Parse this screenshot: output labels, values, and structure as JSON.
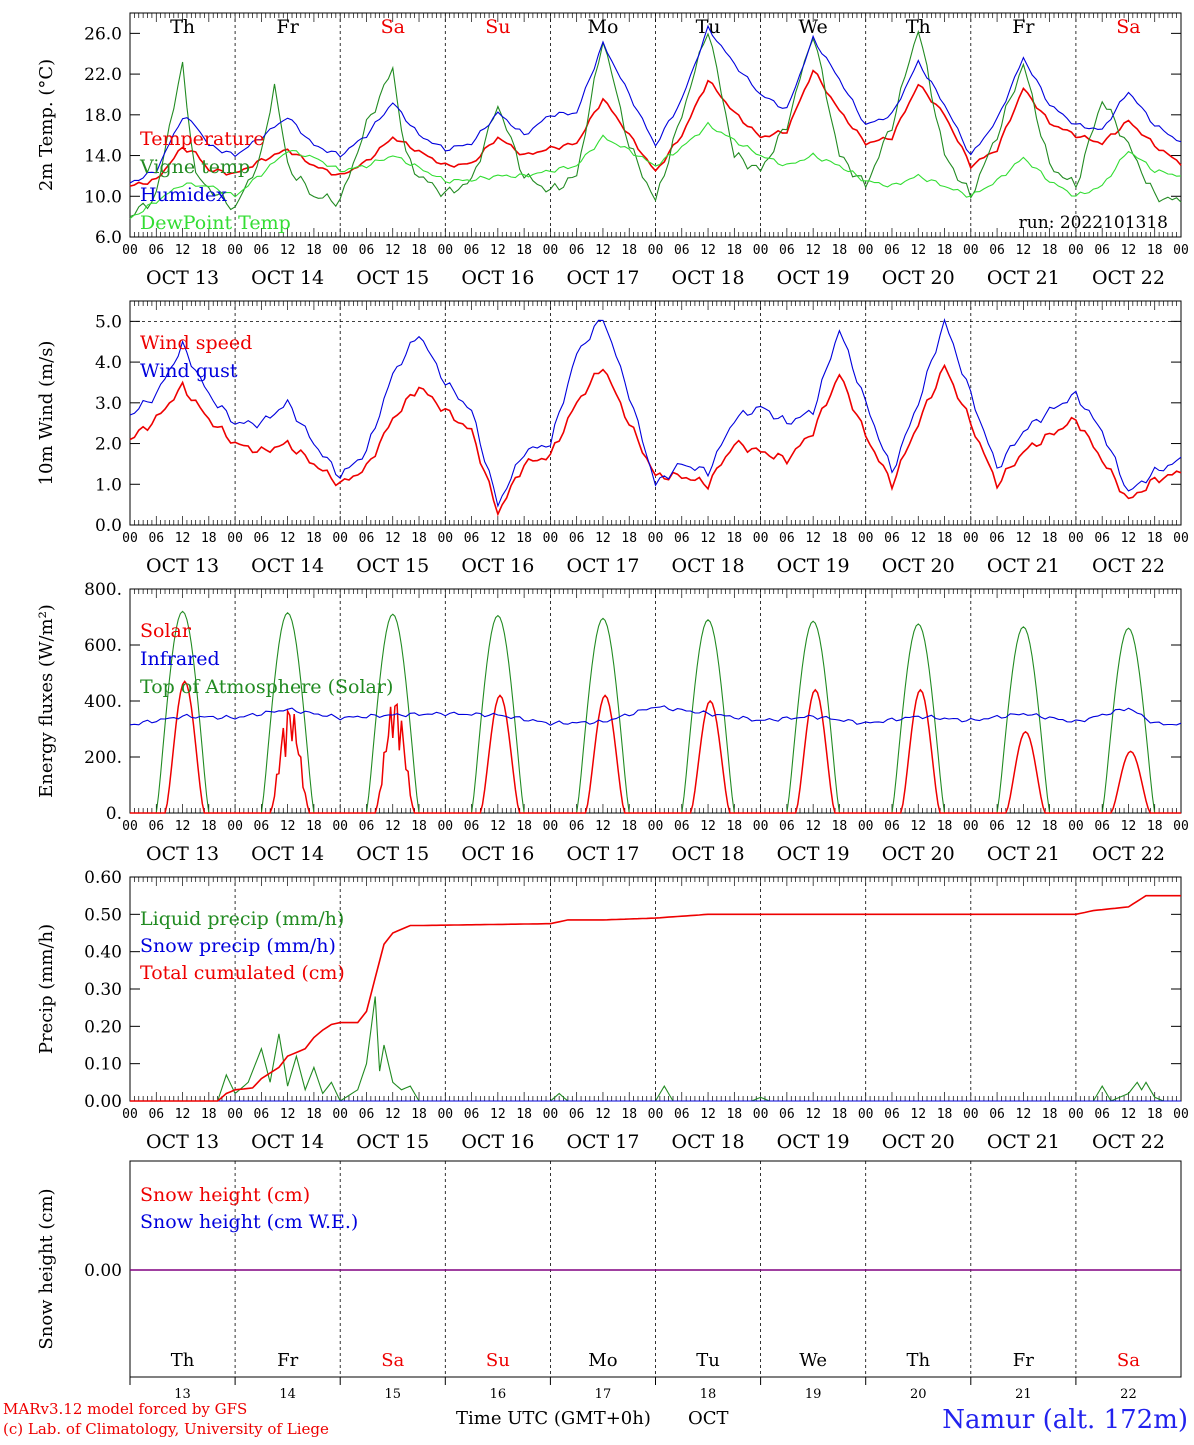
{
  "run_label": "run: 2022101318",
  "footer": {
    "model_line": "MARv3.12 model forced by GFS",
    "credit_line": "(c) Lab. of Climatology, University of Liege",
    "xlabel": "Time UTC (GMT+0h)",
    "month": "OCT",
    "station": "Namur (alt. 172m)"
  },
  "days": [
    {
      "abbr": "Th",
      "date": "OCT 13",
      "num": "13",
      "weekend": false
    },
    {
      "abbr": "Fr",
      "date": "OCT 14",
      "num": "14",
      "weekend": false
    },
    {
      "abbr": "Sa",
      "date": "OCT 15",
      "num": "15",
      "weekend": true
    },
    {
      "abbr": "Su",
      "date": "OCT 16",
      "num": "16",
      "weekend": true
    },
    {
      "abbr": "Mo",
      "date": "OCT 17",
      "num": "17",
      "weekend": false
    },
    {
      "abbr": "Tu",
      "date": "OCT 18",
      "num": "18",
      "weekend": false
    },
    {
      "abbr": "We",
      "date": "OCT 19",
      "num": "19",
      "weekend": false
    },
    {
      "abbr": "Th",
      "date": "OCT 20",
      "num": "20",
      "weekend": false
    },
    {
      "abbr": "Fr",
      "date": "OCT 21",
      "num": "21",
      "weekend": false
    },
    {
      "abbr": "Sa",
      "date": "OCT 22",
      "num": "22",
      "weekend": true
    }
  ],
  "hour_labels": [
    "00",
    "06",
    "12",
    "18"
  ],
  "colors": {
    "red": "#ee0000",
    "green": "#228b22",
    "blue": "#0000dd",
    "lightgreen": "#33dd33",
    "purple": "#800080",
    "weekend": "#ee0000",
    "title_blue": "#2222ee"
  },
  "chart_data": [
    {
      "id": "temperature",
      "type": "line",
      "ylabel": "2m Temp. (°C)",
      "ylim": [
        6,
        28
      ],
      "yticks": [
        "6.0",
        "10.0",
        "14.0",
        "18.0",
        "22.0",
        "26.0"
      ],
      "x_unit": "hours since OCT 13 00 UTC",
      "series": [
        {
          "name": "Temperature",
          "color": "red",
          "x": [
            0,
            6,
            12,
            15,
            18,
            24,
            30,
            36,
            42,
            48,
            54,
            60,
            66,
            72,
            78,
            84,
            90,
            96,
            102,
            108,
            114,
            120,
            126,
            132,
            138,
            144,
            150,
            156,
            162,
            168,
            174,
            180,
            186,
            192,
            198,
            204,
            210,
            216,
            222,
            228,
            234,
            240
          ],
          "y": [
            11.0,
            11.6,
            14.8,
            14.2,
            12.6,
            12.2,
            13.5,
            14.6,
            13.0,
            12.0,
            13.4,
            15.8,
            14.4,
            13.0,
            13.2,
            15.8,
            14.0,
            14.7,
            15.2,
            19.6,
            16.0,
            12.4,
            16.0,
            21.4,
            18.2,
            15.8,
            16.4,
            22.4,
            18.4,
            15.2,
            15.8,
            21.0,
            18.0,
            13.0,
            14.6,
            20.6,
            17.2,
            16.0,
            15.2,
            17.4,
            15.0,
            13.2
          ]
        },
        {
          "name": "Vigne temp",
          "color": "green",
          "x": [
            0,
            6,
            9,
            12,
            15,
            18,
            24,
            30,
            33,
            36,
            42,
            48,
            54,
            60,
            63,
            66,
            72,
            78,
            84,
            90,
            96,
            102,
            108,
            114,
            120,
            126,
            132,
            138,
            144,
            150,
            156,
            162,
            168,
            174,
            180,
            186,
            192,
            198,
            204,
            210,
            216,
            222,
            228,
            234,
            240
          ],
          "y": [
            8.0,
            10.0,
            17.0,
            22.7,
            12.0,
            10.8,
            8.8,
            14.0,
            21.0,
            13.0,
            10.0,
            9.5,
            17.0,
            22.5,
            14.0,
            12.0,
            10.2,
            11.5,
            19.0,
            12.0,
            10.5,
            12.0,
            25.5,
            15.0,
            9.5,
            18.0,
            26.5,
            14.0,
            12.5,
            17.0,
            26.0,
            14.0,
            11.0,
            17.0,
            26.5,
            14.0,
            10.0,
            16.0,
            23.0,
            13.0,
            11.0,
            19.5,
            15.0,
            10.0,
            9.5
          ]
        },
        {
          "name": "Humidex",
          "color": "blue",
          "x": [
            0,
            6,
            12,
            15,
            18,
            24,
            30,
            36,
            42,
            48,
            54,
            60,
            66,
            72,
            78,
            84,
            90,
            96,
            102,
            108,
            114,
            120,
            126,
            132,
            138,
            144,
            150,
            156,
            162,
            168,
            174,
            180,
            186,
            192,
            198,
            204,
            210,
            216,
            222,
            228,
            234,
            240
          ],
          "y": [
            11.3,
            12.5,
            17.8,
            17.0,
            15.0,
            14.0,
            15.8,
            17.8,
            15.0,
            14.0,
            16.0,
            19.2,
            16.0,
            14.6,
            15.2,
            18.2,
            16.0,
            18.0,
            18.2,
            25.0,
            20.0,
            15.0,
            19.5,
            26.5,
            23.0,
            20.0,
            18.5,
            25.5,
            21.5,
            17.0,
            18.0,
            23.2,
            19.0,
            14.0,
            17.5,
            23.6,
            19.0,
            17.0,
            16.5,
            20.3,
            17.0,
            15.3
          ]
        },
        {
          "name": "DewPoint Temp",
          "color": "lightgreen",
          "x": [
            0,
            6,
            12,
            18,
            24,
            30,
            36,
            42,
            48,
            54,
            60,
            66,
            72,
            78,
            84,
            90,
            96,
            102,
            108,
            114,
            120,
            126,
            132,
            138,
            144,
            150,
            156,
            162,
            168,
            174,
            180,
            186,
            192,
            198,
            204,
            210,
            216,
            222,
            228,
            234,
            240
          ],
          "y": [
            7.8,
            9.5,
            11.2,
            11.0,
            10.0,
            12.2,
            14.5,
            13.8,
            12.5,
            13.0,
            14.0,
            12.8,
            11.5,
            11.6,
            12.0,
            12.0,
            12.5,
            13.0,
            15.8,
            14.5,
            13.0,
            14.8,
            17.0,
            15.5,
            14.0,
            13.0,
            14.0,
            13.0,
            11.5,
            11.0,
            12.0,
            11.0,
            10.0,
            11.5,
            13.8,
            11.5,
            10.0,
            11.0,
            14.5,
            12.5,
            12.0
          ]
        }
      ]
    },
    {
      "id": "wind",
      "type": "line",
      "ylabel": "10m Wind (m/s)",
      "ylim": [
        0,
        5.5
      ],
      "yticks": [
        "0.0",
        "1.0",
        "2.0",
        "3.0",
        "4.0",
        "5.0"
      ],
      "x_unit": "hours since OCT 13 00 UTC",
      "series": [
        {
          "name": "Wind speed",
          "color": "red",
          "x": [
            0,
            6,
            12,
            18,
            24,
            30,
            36,
            42,
            48,
            54,
            60,
            66,
            72,
            78,
            84,
            90,
            96,
            102,
            108,
            114,
            120,
            126,
            132,
            138,
            144,
            150,
            156,
            162,
            168,
            174,
            180,
            186,
            192,
            198,
            204,
            210,
            216,
            222,
            228,
            234,
            240
          ],
          "y": [
            2.1,
            2.6,
            3.4,
            2.6,
            2.0,
            1.8,
            2.0,
            1.5,
            1.0,
            1.4,
            2.6,
            3.4,
            2.8,
            2.3,
            0.3,
            1.5,
            1.7,
            3.0,
            3.9,
            2.5,
            1.2,
            1.2,
            1.0,
            2.0,
            1.8,
            1.6,
            2.3,
            3.7,
            2.2,
            1.0,
            2.5,
            3.9,
            2.5,
            1.0,
            1.8,
            2.2,
            2.6,
            1.6,
            0.6,
            1.1,
            1.3
          ]
        },
        {
          "name": "Wind gust",
          "color": "blue",
          "x": [
            0,
            6,
            12,
            18,
            24,
            30,
            36,
            42,
            48,
            54,
            60,
            66,
            72,
            78,
            84,
            90,
            96,
            102,
            108,
            114,
            120,
            126,
            132,
            138,
            144,
            150,
            156,
            162,
            168,
            174,
            180,
            186,
            192,
            198,
            204,
            210,
            216,
            222,
            228,
            234,
            240
          ],
          "y": [
            2.7,
            3.2,
            4.4,
            3.2,
            2.5,
            2.5,
            3.0,
            2.0,
            1.2,
            1.8,
            3.7,
            4.7,
            3.5,
            2.8,
            0.5,
            1.8,
            2.0,
            4.2,
            5.1,
            3.2,
            1.0,
            1.5,
            1.3,
            2.6,
            2.9,
            2.5,
            2.8,
            4.8,
            3.0,
            1.3,
            3.0,
            5.0,
            3.2,
            1.4,
            2.3,
            2.8,
            3.2,
            2.3,
            0.8,
            1.3,
            1.6
          ]
        }
      ]
    },
    {
      "id": "energy",
      "type": "line",
      "ylabel": "Energy fluxes (W/m²)",
      "ylim": [
        0,
        800
      ],
      "yticks": [
        "0.",
        "200.",
        "400.",
        "600.",
        "800."
      ],
      "x_unit": "hours since OCT 13 00 UTC",
      "solar_peaks": [
        470,
        390,
        420,
        420,
        420,
        400,
        440,
        440,
        290,
        220
      ],
      "toa_peaks": [
        720,
        715,
        710,
        705,
        695,
        690,
        685,
        675,
        665,
        660
      ],
      "series": [
        {
          "name": "Solar",
          "color": "red"
        },
        {
          "name": "Infrared",
          "color": "blue",
          "x": [
            0,
            12,
            24,
            36,
            48,
            60,
            72,
            84,
            96,
            108,
            120,
            132,
            144,
            156,
            168,
            180,
            192,
            204,
            216,
            228,
            234,
            240
          ],
          "y": [
            315,
            345,
            340,
            370,
            340,
            350,
            355,
            350,
            320,
            325,
            380,
            355,
            330,
            345,
            320,
            345,
            330,
            355,
            325,
            375,
            320,
            315
          ]
        },
        {
          "name": "Top of Atmosphere (Solar)",
          "color": "green"
        }
      ]
    },
    {
      "id": "precip",
      "type": "line",
      "ylabel": "Precip (mm/h)",
      "ylim": [
        0,
        0.6
      ],
      "yticks": [
        "0.00",
        "0.10",
        "0.20",
        "0.30",
        "0.40",
        "0.50",
        "0.60"
      ],
      "x_unit": "hours since OCT 13 00 UTC",
      "series": [
        {
          "name": "Liquid precip (mm/h)",
          "color": "green",
          "x": [
            0,
            20,
            22,
            24,
            27,
            30,
            32,
            34,
            36,
            38,
            40,
            42,
            44,
            46,
            48,
            52,
            54,
            56,
            57,
            58,
            60,
            62,
            64,
            66,
            96,
            98,
            100,
            120,
            122,
            124,
            142,
            144,
            146,
            168,
            170,
            220,
            222,
            224,
            228,
            230,
            231,
            232,
            234,
            236,
            240
          ],
          "y": [
            0,
            0,
            0.07,
            0.02,
            0.05,
            0.14,
            0.05,
            0.18,
            0.04,
            0.12,
            0.03,
            0.09,
            0.02,
            0.05,
            0,
            0.03,
            0.1,
            0.28,
            0.08,
            0.15,
            0.05,
            0.03,
            0.04,
            0,
            0,
            0.02,
            0,
            0,
            0.04,
            0,
            0,
            0.01,
            0,
            0,
            0,
            0,
            0.04,
            0,
            0.02,
            0.05,
            0.03,
            0.05,
            0.01,
            0,
            0
          ]
        },
        {
          "name": "Snow precip (mm/h)",
          "color": "blue",
          "x": [
            0,
            240
          ],
          "y": [
            0,
            0
          ]
        },
        {
          "name": "Total cumulated (cm)",
          "color": "red",
          "x": [
            0,
            20,
            22,
            24,
            28,
            30,
            34,
            36,
            40,
            42,
            44,
            46,
            48,
            52,
            54,
            56,
            58,
            60,
            64,
            66,
            96,
            100,
            108,
            120,
            126,
            132,
            144,
            216,
            220,
            228,
            232,
            240
          ],
          "y": [
            0,
            0,
            0.02,
            0.03,
            0.035,
            0.06,
            0.09,
            0.12,
            0.14,
            0.17,
            0.19,
            0.205,
            0.21,
            0.21,
            0.24,
            0.33,
            0.42,
            0.45,
            0.47,
            0.47,
            0.475,
            0.485,
            0.485,
            0.49,
            0.495,
            0.5,
            0.5,
            0.5,
            0.51,
            0.52,
            0.55,
            0.55
          ]
        }
      ]
    },
    {
      "id": "snow",
      "type": "line",
      "ylabel": "Snow height (cm)",
      "yticks": [
        "0.00"
      ],
      "x_unit": "hours since OCT 13 00 UTC",
      "series": [
        {
          "name": "Snow height (cm)",
          "color": "red",
          "x": [
            0,
            240
          ],
          "y": [
            0,
            0
          ]
        },
        {
          "name": "Snow height (cm W.E.)",
          "color": "blue",
          "x": [
            0,
            240
          ],
          "y": [
            0,
            0
          ]
        }
      ]
    }
  ]
}
